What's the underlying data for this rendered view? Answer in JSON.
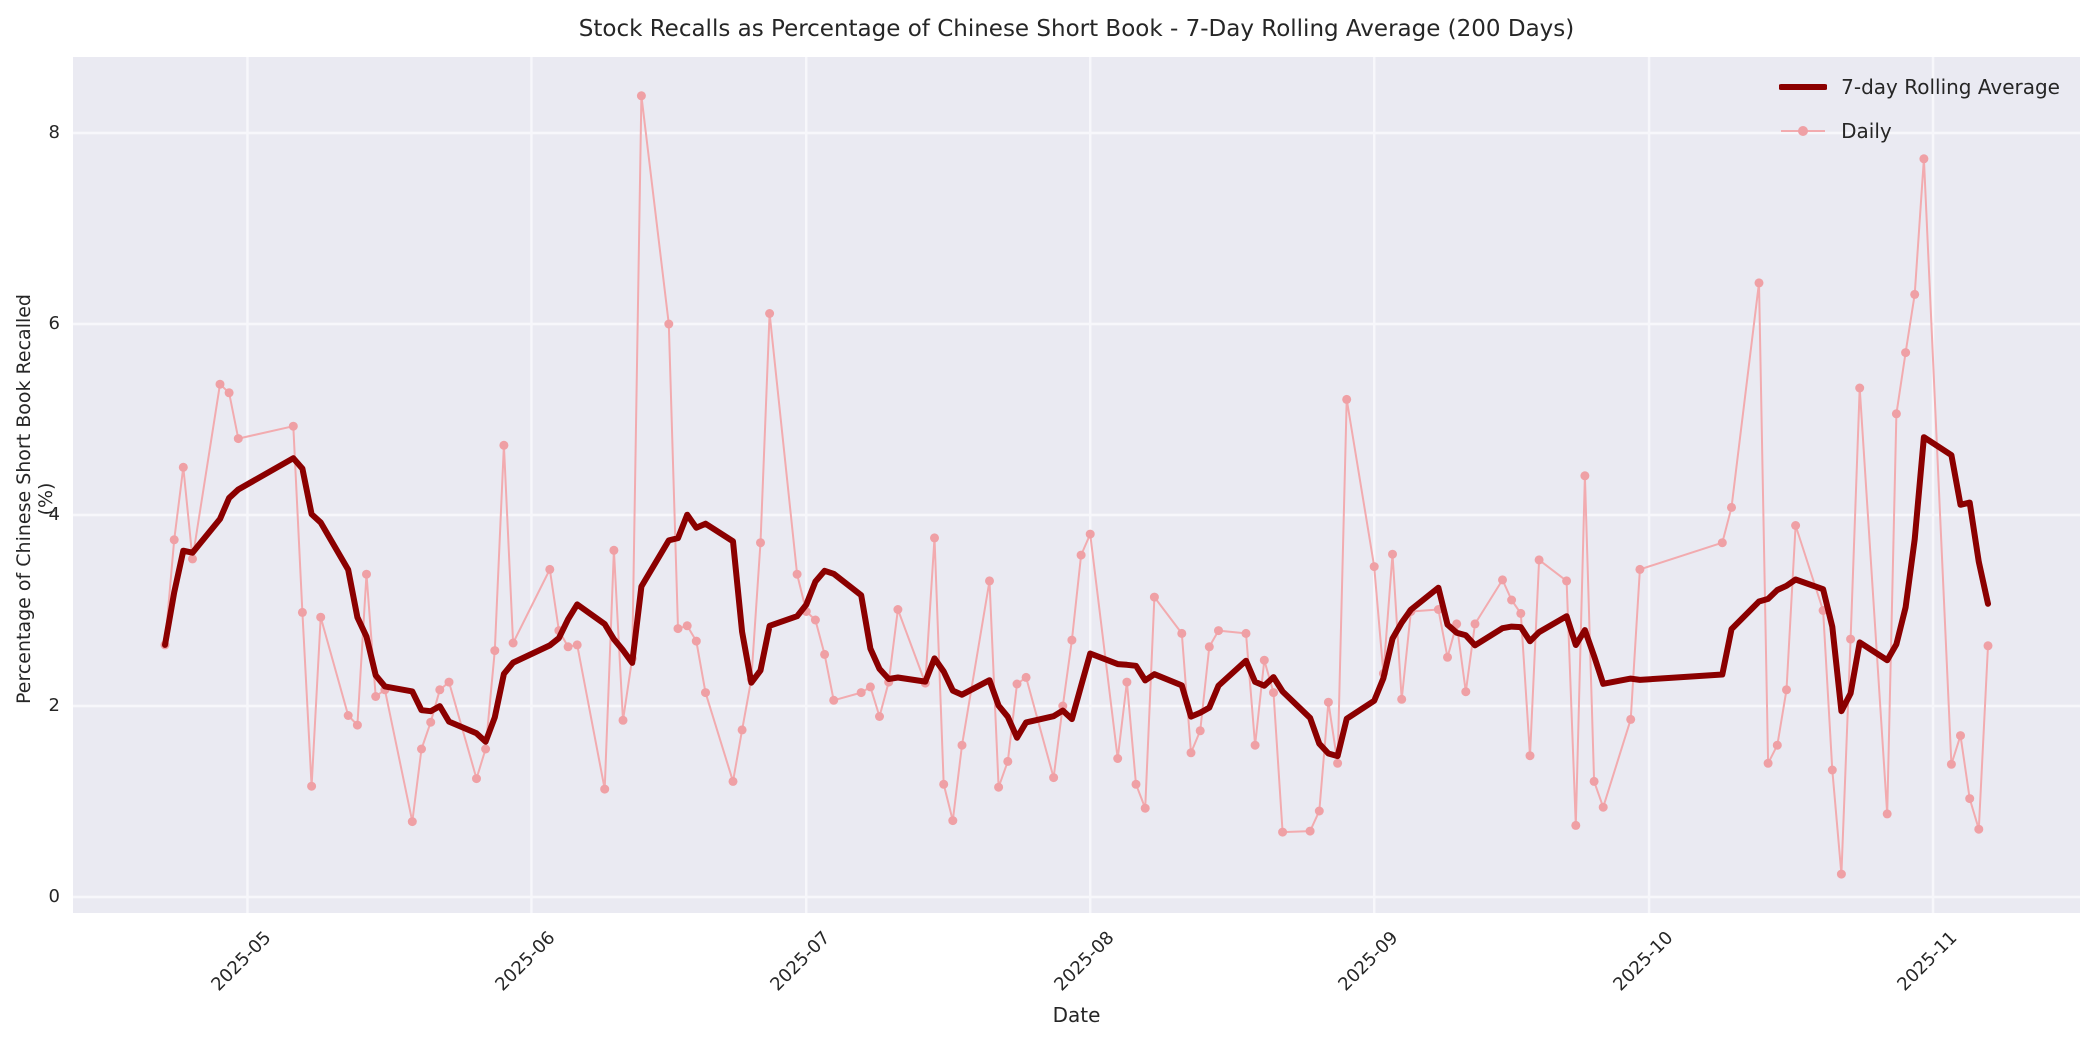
{
  "window": {
    "background_color": "#ffffff"
  },
  "chart_data": {
    "type": "line",
    "title": "Stock Recalls as Percentage of Chinese Short Book - 7-Day Rolling Average (200 Days)",
    "xlabel": "Date",
    "ylabel": "Percentage of Chinese Short Book Recalled (%)",
    "legend_position": "upper right",
    "grid": true,
    "axes_background": "#eaeaf2",
    "gridline_color": "#f7f7fb",
    "text_color": "#262626",
    "y_ticks": [
      0,
      2,
      4,
      6,
      8
    ],
    "x_ticks": [
      "2025-05",
      "2025-06",
      "2025-07",
      "2025-08",
      "2025-09",
      "2025-10",
      "2025-11"
    ],
    "x_tick_dates": [
      "2025-05-01",
      "2025-06-01",
      "2025-07-01",
      "2025-08-01",
      "2025-09-01",
      "2025-10-01",
      "2025-11-01"
    ],
    "ylim": [
      -0.2,
      8.8
    ],
    "x_range": [
      "2025-04-22",
      "2025-11-07"
    ],
    "series": [
      {
        "name": "7-day Rolling Average",
        "color": "#8b0000",
        "line_width": 6,
        "markers": false,
        "derived": "rolling_mean_window_7_of_daily"
      },
      {
        "name": "Daily",
        "color": "#f2abaf",
        "marker_color": "#efa0a5",
        "line_width": 2,
        "markers": true
      }
    ],
    "daily": {
      "dates": [
        "2025-04-22",
        "2025-04-23",
        "2025-04-24",
        "2025-04-25",
        "2025-04-28",
        "2025-04-29",
        "2025-04-30",
        "2025-05-06",
        "2025-05-07",
        "2025-05-08",
        "2025-05-09",
        "2025-05-12",
        "2025-05-13",
        "2025-05-14",
        "2025-05-15",
        "2025-05-16",
        "2025-05-19",
        "2025-05-20",
        "2025-05-21",
        "2025-05-22",
        "2025-05-23",
        "2025-05-26",
        "2025-05-27",
        "2025-05-28",
        "2025-05-29",
        "2025-05-30",
        "2025-06-03",
        "2025-06-04",
        "2025-06-05",
        "2025-06-06",
        "2025-06-09",
        "2025-06-10",
        "2025-06-11",
        "2025-06-12",
        "2025-06-13",
        "2025-06-16",
        "2025-06-17",
        "2025-06-18",
        "2025-06-19",
        "2025-06-20",
        "2025-06-23",
        "2025-06-24",
        "2025-06-25",
        "2025-06-26",
        "2025-06-27",
        "2025-06-30",
        "2025-07-01",
        "2025-07-02",
        "2025-07-03",
        "2025-07-04",
        "2025-07-07",
        "2025-07-08",
        "2025-07-09",
        "2025-07-10",
        "2025-07-11",
        "2025-07-14",
        "2025-07-15",
        "2025-07-16",
        "2025-07-17",
        "2025-07-18",
        "2025-07-21",
        "2025-07-22",
        "2025-07-23",
        "2025-07-24",
        "2025-07-25",
        "2025-07-28",
        "2025-07-29",
        "2025-07-30",
        "2025-07-31",
        "2025-08-01",
        "2025-08-04",
        "2025-08-05",
        "2025-08-06",
        "2025-08-07",
        "2025-08-08",
        "2025-08-11",
        "2025-08-12",
        "2025-08-13",
        "2025-08-14",
        "2025-08-15",
        "2025-08-18",
        "2025-08-19",
        "2025-08-20",
        "2025-08-21",
        "2025-08-22",
        "2025-08-25",
        "2025-08-26",
        "2025-08-27",
        "2025-08-28",
        "2025-08-29",
        "2025-09-01",
        "2025-09-02",
        "2025-09-03",
        "2025-09-04",
        "2025-09-05",
        "2025-09-08",
        "2025-09-09",
        "2025-09-10",
        "2025-09-11",
        "2025-09-12",
        "2025-09-15",
        "2025-09-16",
        "2025-09-17",
        "2025-09-18",
        "2025-09-19",
        "2025-09-22",
        "2025-09-23",
        "2025-09-24",
        "2025-09-25",
        "2025-09-26",
        "2025-09-29",
        "2025-09-30",
        "2025-10-09",
        "2025-10-10",
        "2025-10-13",
        "2025-10-14",
        "2025-10-15",
        "2025-10-16",
        "2025-10-17",
        "2025-10-20",
        "2025-10-21",
        "2025-10-22",
        "2025-10-23",
        "2025-10-24",
        "2025-10-27",
        "2025-10-28",
        "2025-10-29",
        "2025-10-30",
        "2025-10-31",
        "2025-11-03",
        "2025-11-04",
        "2025-11-05",
        "2025-11-06",
        "2025-11-07"
      ],
      "values": [
        2.64,
        3.74,
        4.5,
        3.54,
        5.37,
        5.28,
        4.8,
        4.93,
        2.98,
        1.16,
        2.93,
        1.9,
        1.8,
        3.38,
        2.1,
        2.17,
        0.79,
        1.55,
        1.83,
        2.17,
        2.25,
        1.24,
        1.55,
        2.58,
        4.73,
        2.66,
        3.43,
        2.79,
        2.62,
        2.64,
        1.13,
        3.63,
        1.85,
        2.5,
        8.39,
        6.0,
        2.81,
        2.84,
        2.68,
        2.14,
        1.21,
        1.75,
        2.28,
        3.71,
        6.11,
        3.38,
        2.99,
        2.9,
        2.54,
        2.06,
        2.14,
        2.2,
        1.89,
        2.25,
        3.01,
        2.24,
        3.76,
        1.18,
        0.8,
        1.59,
        3.31,
        1.15,
        1.42,
        2.23,
        2.3,
        1.25,
        2.0,
        2.69,
        3.58,
        3.8,
        1.45,
        2.25,
        1.18,
        0.93,
        3.14,
        2.76,
        1.51,
        1.74,
        2.62,
        2.79,
        2.76,
        1.59,
        2.48,
        2.14,
        0.68,
        0.69,
        0.9,
        2.04,
        1.4,
        5.21,
        3.46,
        2.34,
        3.59,
        2.07,
        2.99,
        3.01,
        2.51,
        2.86,
        2.15,
        2.86,
        3.32,
        3.11,
        2.97,
        1.48,
        3.53,
        3.31,
        0.75,
        4.41,
        1.21,
        0.94,
        1.86,
        3.43,
        3.71,
        4.08,
        6.43,
        1.4,
        1.59,
        2.17,
        3.89,
        3.0,
        1.33,
        0.24,
        2.7,
        5.33,
        0.87,
        5.06,
        5.7,
        6.31,
        7.73,
        1.39,
        1.69,
        1.03,
        0.71,
        2.63
      ]
    }
  }
}
